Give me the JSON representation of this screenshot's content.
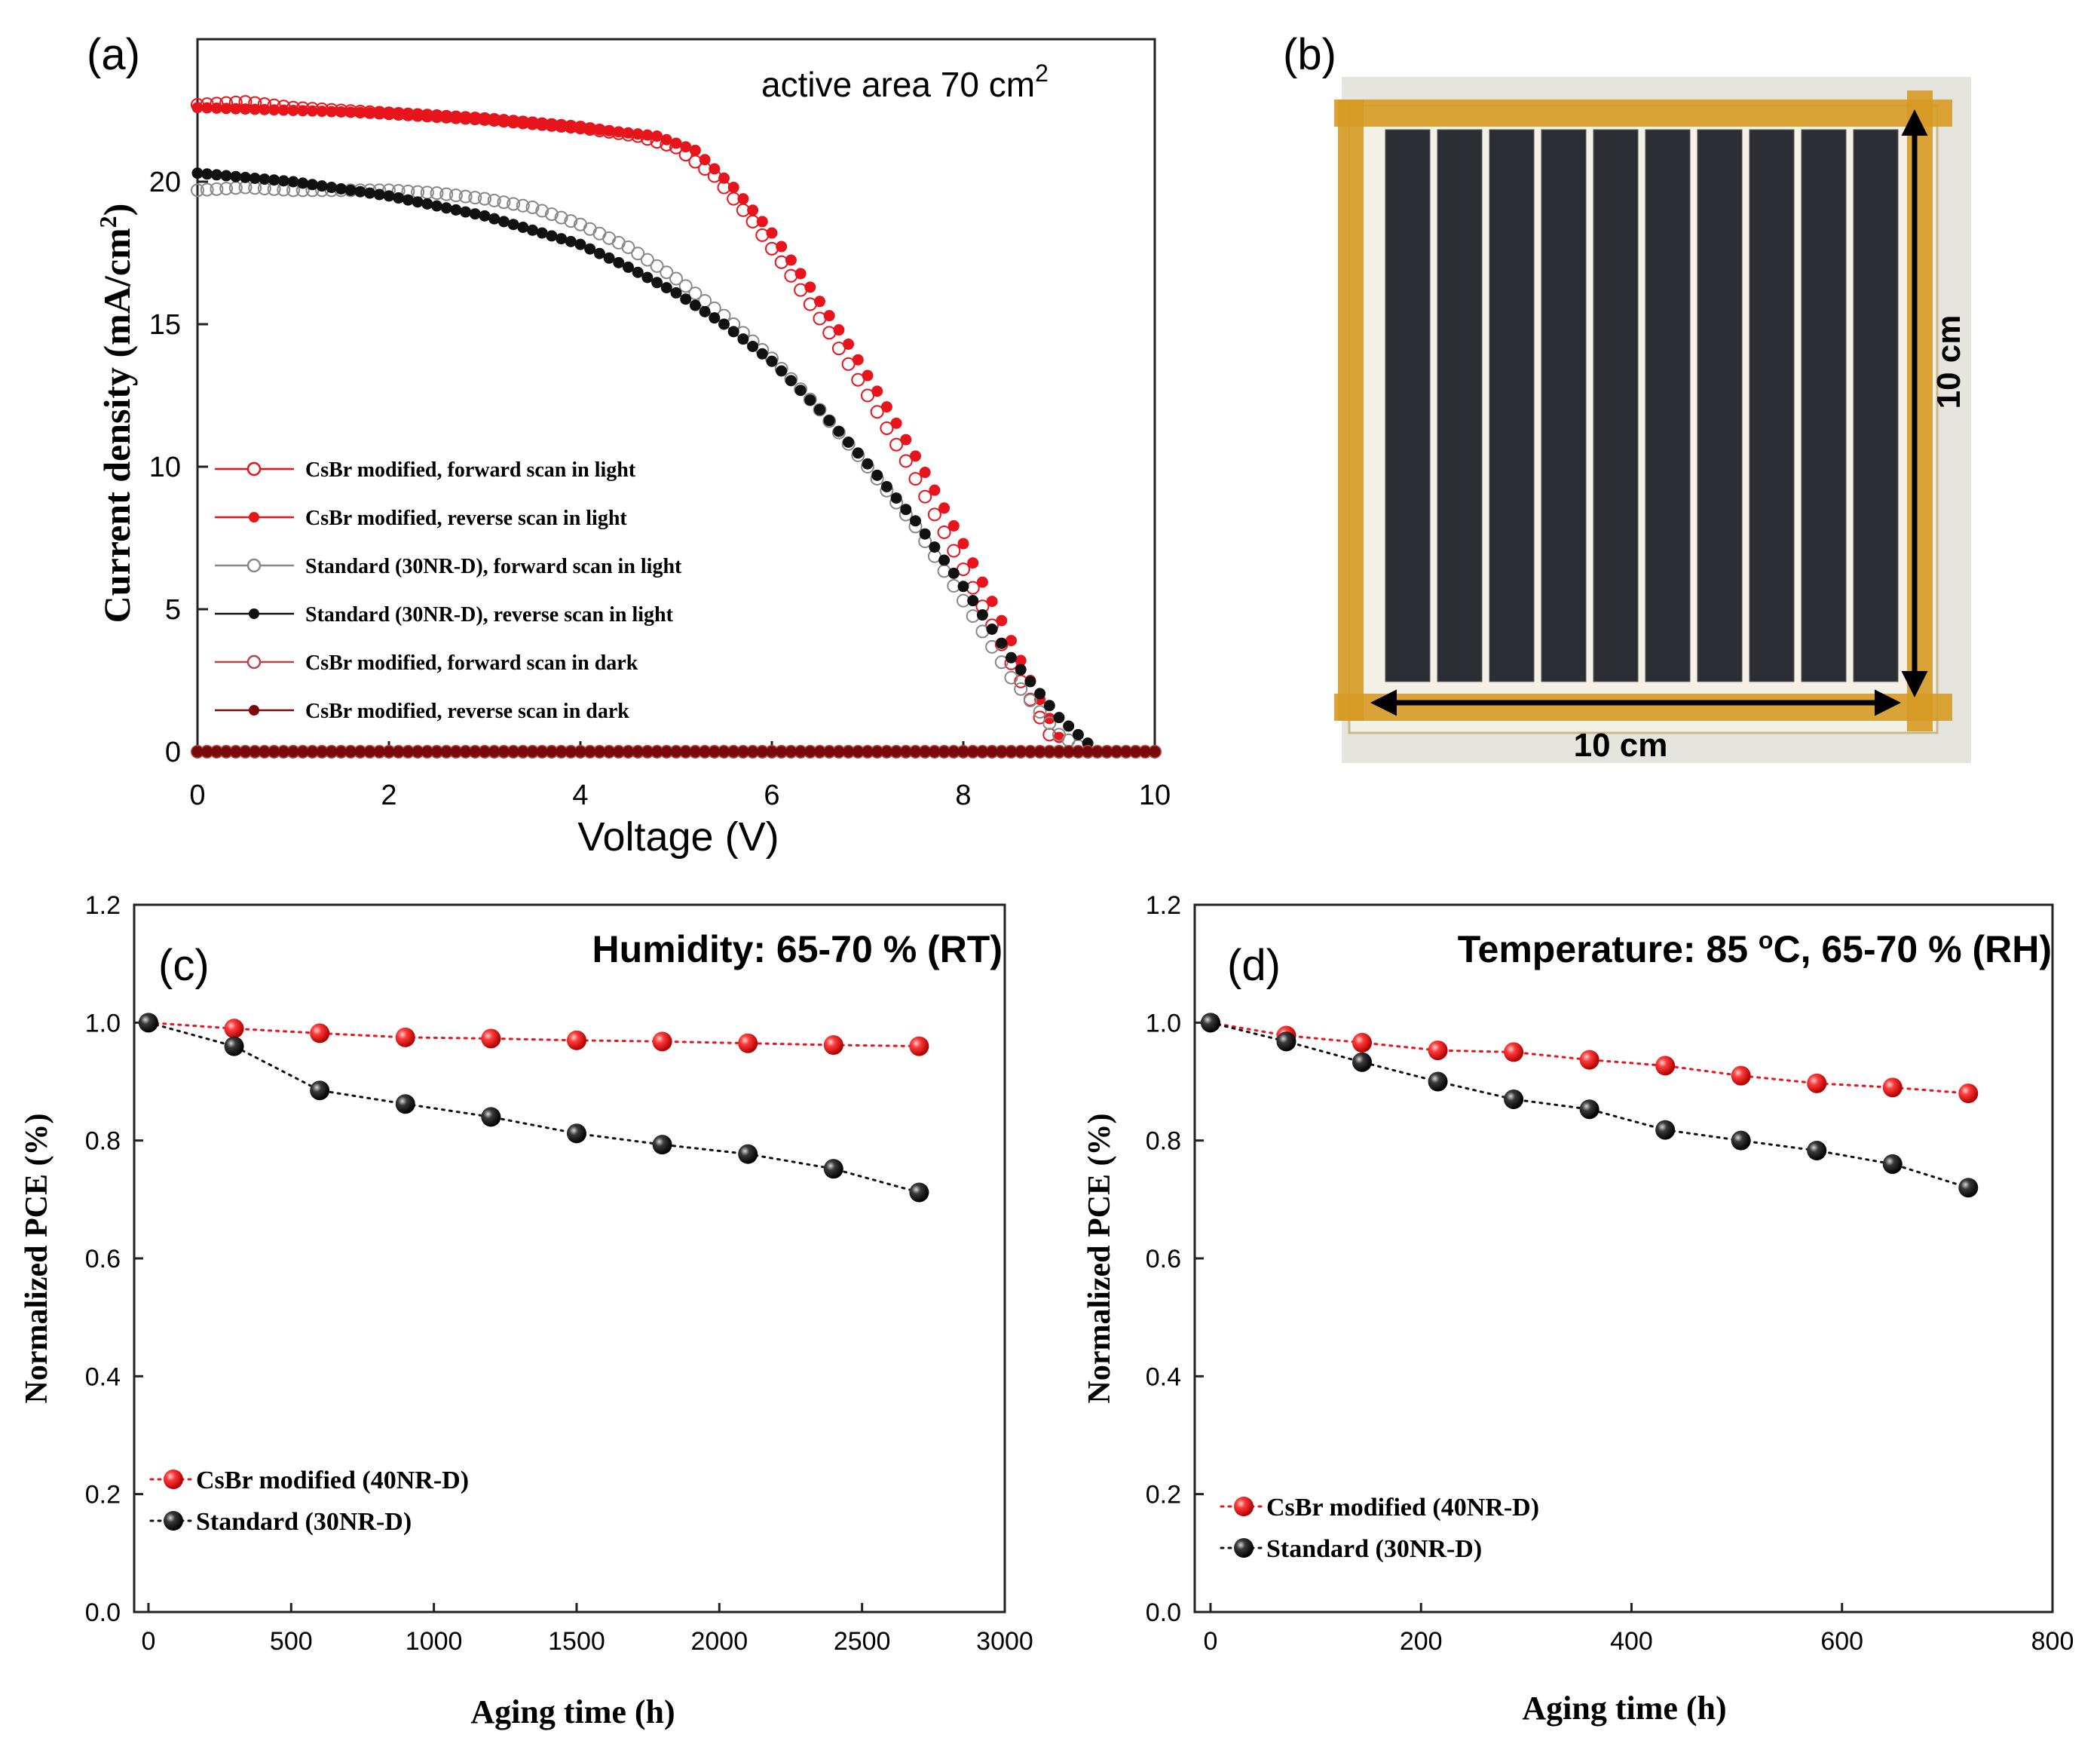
{
  "colors": {
    "red": "#e8141c",
    "black": "#111111",
    "dark": "#7a0a0a",
    "tape": "#d69a24",
    "cell": "#2d2e33"
  },
  "panel_a": {
    "label": "(a)",
    "annotation": "active area 70 cm",
    "annotation_sup": "2",
    "chart_data": {
      "type": "line",
      "xlabel": "Voltage (V)",
      "ylabel": "Current density (mA/cm",
      "ylabel_sup": "2",
      "ylabel_close": ")",
      "xlim": [
        0,
        10
      ],
      "ylim": [
        0,
        25
      ],
      "xticks": [
        0,
        2,
        4,
        6,
        8,
        10
      ],
      "yticks": [
        0,
        5,
        10,
        15,
        20
      ],
      "series": [
        {
          "name": "CsBr modified, forward scan in light",
          "color": "#e8141c",
          "filled": false,
          "points": [
            [
              0,
              22.7
            ],
            [
              0.5,
              22.8
            ],
            [
              1,
              22.6
            ],
            [
              2,
              22.4
            ],
            [
              3,
              22.2
            ],
            [
              4,
              21.9
            ],
            [
              4.6,
              21.6
            ],
            [
              5,
              21.2
            ],
            [
              5.4,
              20.2
            ],
            [
              5.8,
              18.6
            ],
            [
              6.2,
              16.7
            ],
            [
              6.6,
              14.7
            ],
            [
              7,
              12.5
            ],
            [
              7.4,
              10.2
            ],
            [
              7.8,
              7.7
            ],
            [
              8.2,
              5.1
            ],
            [
              8.5,
              3.1
            ],
            [
              8.8,
              1.2
            ],
            [
              9.0,
              0
            ]
          ]
        },
        {
          "name": "CsBr modified, reverse scan in light",
          "color": "#e8141c",
          "filled": true,
          "points": [
            [
              0,
              22.6
            ],
            [
              1,
              22.5
            ],
            [
              2,
              22.4
            ],
            [
              3,
              22.2
            ],
            [
              4,
              21.9
            ],
            [
              4.8,
              21.6
            ],
            [
              5.2,
              21.1
            ],
            [
              5.6,
              19.8
            ],
            [
              6.0,
              18.2
            ],
            [
              6.4,
              16.3
            ],
            [
              6.8,
              14.3
            ],
            [
              7.2,
              12.1
            ],
            [
              7.6,
              9.8
            ],
            [
              8.0,
              7.3
            ],
            [
              8.4,
              4.6
            ],
            [
              8.7,
              2.5
            ],
            [
              9.0,
              0.5
            ],
            [
              9.1,
              0
            ]
          ]
        },
        {
          "name": "Standard (30NR-D), forward scan in light",
          "color": "#888888",
          "filled": false,
          "points": [
            [
              0,
              19.7
            ],
            [
              0.5,
              19.8
            ],
            [
              1,
              19.7
            ],
            [
              2,
              19.7
            ],
            [
              2.5,
              19.6
            ],
            [
              3,
              19.4
            ],
            [
              3.5,
              19.1
            ],
            [
              4,
              18.5
            ],
            [
              4.5,
              17.7
            ],
            [
              5,
              16.6
            ],
            [
              5.5,
              15.3
            ],
            [
              6,
              13.8
            ],
            [
              6.5,
              12.0
            ],
            [
              7,
              10.0
            ],
            [
              7.5,
              7.9
            ],
            [
              8,
              5.3
            ],
            [
              8.5,
              2.6
            ],
            [
              9.0,
              0.6
            ],
            [
              9.3,
              0
            ]
          ]
        },
        {
          "name": "Standard (30NR-D), reverse scan in light",
          "color": "#111111",
          "filled": true,
          "points": [
            [
              0,
              20.3
            ],
            [
              1,
              20.0
            ],
            [
              2,
              19.5
            ],
            [
              3,
              18.8
            ],
            [
              4,
              17.8
            ],
            [
              4.5,
              17.0
            ],
            [
              5,
              16.1
            ],
            [
              5.5,
              15.0
            ],
            [
              6,
              13.7
            ],
            [
              6.5,
              12.0
            ],
            [
              7,
              10.1
            ],
            [
              7.5,
              8.1
            ],
            [
              8,
              5.8
            ],
            [
              8.5,
              3.3
            ],
            [
              9,
              1.2
            ],
            [
              9.4,
              0
            ]
          ]
        },
        {
          "name": "CsBr modified, forward scan in dark",
          "color": "#b0474c",
          "filled": false,
          "points": [
            [
              0,
              0
            ],
            [
              10,
              0
            ]
          ]
        },
        {
          "name": "CsBr modified, reverse scan in dark",
          "color": "#7a0a0a",
          "filled": true,
          "points": [
            [
              0,
              0
            ],
            [
              10,
              0
            ]
          ]
        }
      ]
    }
  },
  "panel_b": {
    "label": "(b)",
    "dim_horizontal": "10 cm",
    "dim_vertical": "10 cm",
    "cell_count": 10
  },
  "panel_c": {
    "label": "(c)",
    "condition": "Humidity: 65-70 % (RT)",
    "chart_data": {
      "type": "line",
      "xlabel": "Aging time (h)",
      "ylabel": "Normalized PCE (%)",
      "xlim": [
        -50,
        3000
      ],
      "ylim": [
        0,
        1.2
      ],
      "xticks": [
        0,
        500,
        1000,
        1500,
        2000,
        2500,
        3000
      ],
      "yticks": [
        "0.0",
        "0.2",
        "0.4",
        "0.6",
        "0.8",
        "1.0",
        "1.2"
      ],
      "series": [
        {
          "name": "CsBr modified  (40NR-D)",
          "color": "#e8141c",
          "x": [
            0,
            300,
            600,
            900,
            1200,
            1500,
            1800,
            2100,
            2400,
            2700
          ],
          "y": [
            1.0,
            0.99,
            0.982,
            0.975,
            0.973,
            0.97,
            0.968,
            0.965,
            0.962,
            0.96
          ]
        },
        {
          "name": "Standard  (30NR-D)",
          "color": "#111111",
          "x": [
            0,
            300,
            600,
            900,
            1200,
            1500,
            1800,
            2100,
            2400,
            2700
          ],
          "y": [
            1.0,
            0.96,
            0.885,
            0.862,
            0.84,
            0.812,
            0.793,
            0.777,
            0.752,
            0.712
          ]
        }
      ]
    }
  },
  "panel_d": {
    "label": "(d)",
    "condition_prefix": "Temperature: 85 ",
    "condition_sup": "o",
    "condition_suffix": "C,  65-70 % (RH)",
    "chart_data": {
      "type": "line",
      "xlabel": "Aging time (h)",
      "ylabel": "Normalized PCE (%)",
      "xlim": [
        -15,
        800
      ],
      "ylim": [
        0,
        1.2
      ],
      "xticks": [
        0,
        200,
        400,
        600,
        800
      ],
      "yticks": [
        "0.0",
        "0.2",
        "0.4",
        "0.6",
        "0.8",
        "1.0",
        "1.2"
      ],
      "series": [
        {
          "name": "CsBr modified  (40NR-D)",
          "color": "#e8141c",
          "x": [
            0,
            72,
            144,
            216,
            288,
            360,
            432,
            504,
            576,
            648,
            720
          ],
          "y": [
            1.0,
            0.978,
            0.966,
            0.953,
            0.95,
            0.937,
            0.927,
            0.91,
            0.897,
            0.89,
            0.88
          ]
        },
        {
          "name": "Standard  (30NR-D)",
          "color": "#111111",
          "x": [
            0,
            72,
            144,
            216,
            288,
            360,
            432,
            504,
            576,
            648,
            720
          ],
          "y": [
            1.0,
            0.968,
            0.933,
            0.9,
            0.87,
            0.853,
            0.818,
            0.8,
            0.783,
            0.76,
            0.72
          ]
        }
      ]
    }
  }
}
